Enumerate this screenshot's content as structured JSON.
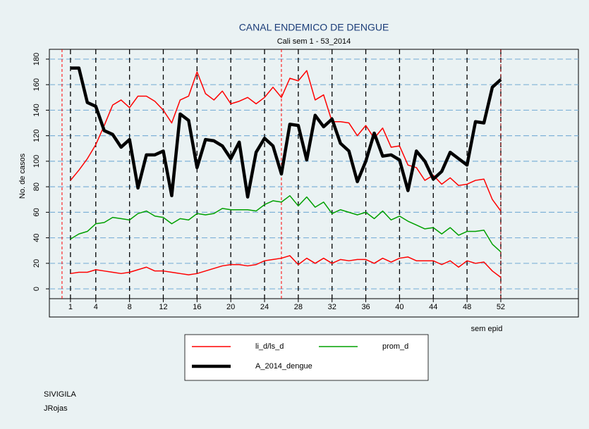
{
  "chart_data": {
    "type": "line",
    "title": "CANAL ENDEMICO DE DENGUE",
    "subtitle": "Cali sem 1 - 53_2014",
    "ylabel": "No. de casos",
    "xlabel": "sem epid",
    "footnotes": [
      "SIVIGILA",
      "JRojas"
    ],
    "x": [
      1,
      2,
      3,
      4,
      5,
      6,
      7,
      8,
      9,
      10,
      11,
      12,
      13,
      14,
      15,
      16,
      17,
      18,
      19,
      20,
      21,
      22,
      23,
      24,
      25,
      26,
      27,
      28,
      29,
      30,
      31,
      32,
      33,
      34,
      35,
      36,
      37,
      38,
      39,
      40,
      41,
      42,
      43,
      44,
      45,
      46,
      47,
      48,
      49,
      50,
      51,
      52
    ],
    "series": [
      {
        "name": "li_d/ls_d",
        "color": "#ff0000",
        "width": 1.5,
        "values": [
          85,
          93,
          102,
          113,
          128,
          144,
          148,
          142,
          151,
          151,
          147,
          140,
          130,
          148,
          151,
          170,
          153,
          148,
          155,
          145,
          147,
          150,
          145,
          150,
          158,
          150,
          165,
          163,
          171,
          148,
          152,
          131,
          131,
          130,
          120,
          128,
          118,
          126,
          111,
          112,
          97,
          95,
          85,
          89,
          82,
          87,
          81,
          82,
          85,
          86,
          70,
          61
        ]
      },
      {
        "color": "#ff0000",
        "width": 1.5,
        "values": [
          12,
          13,
          13,
          15,
          14,
          13,
          12,
          13,
          15,
          17,
          14,
          14,
          13,
          12,
          11,
          12,
          14,
          16,
          18,
          19,
          19,
          18,
          19,
          22,
          23,
          24,
          26,
          19,
          24,
          20,
          24,
          20,
          23,
          22,
          23,
          23,
          20,
          24,
          21,
          24,
          25,
          22,
          22,
          22,
          19,
          22,
          17,
          22,
          20,
          21,
          14,
          9
        ]
      },
      {
        "name": "prom_d",
        "color": "#00a000",
        "width": 1.5,
        "values": [
          39,
          43,
          45,
          51,
          52,
          56,
          55,
          54,
          59,
          61,
          57,
          56,
          51,
          55,
          54,
          59,
          58,
          59,
          63,
          62,
          62,
          62,
          61,
          66,
          69,
          68,
          73,
          65,
          72,
          64,
          68,
          59,
          62,
          60,
          58,
          60,
          55,
          61,
          54,
          57,
          53,
          50,
          47,
          48,
          43,
          48,
          42,
          45,
          45,
          46,
          35,
          29
        ]
      },
      {
        "name": "A_2014_dengue",
        "color": "#000000",
        "width": 4.5,
        "values": [
          173,
          173,
          146,
          143,
          124,
          121,
          111,
          117,
          79,
          105,
          105,
          108,
          73,
          137,
          132,
          95,
          117,
          116,
          112,
          102,
          115,
          72,
          107,
          118,
          112,
          90,
          129,
          128,
          101,
          136,
          127,
          133,
          114,
          108,
          84,
          100,
          122,
          104,
          105,
          101,
          77,
          108,
          100,
          86,
          92,
          107,
          102,
          97,
          131,
          130,
          158,
          164
        ]
      }
    ],
    "xlim": [
      -1.5,
      61.2
    ],
    "xticks": [
      1,
      4,
      8,
      12,
      16,
      20,
      24,
      28,
      32,
      36,
      40,
      44,
      48,
      52
    ],
    "ylim": [
      -7.7,
      187.7
    ],
    "yticks": [
      0,
      20,
      40,
      60,
      80,
      100,
      120,
      140,
      160,
      180
    ],
    "grid": true,
    "vlines": [
      {
        "x": 0,
        "color": "#ff0000"
      },
      {
        "x": 26,
        "color": "#ff0000"
      },
      {
        "x": 52,
        "color": "#a00000"
      }
    ]
  }
}
